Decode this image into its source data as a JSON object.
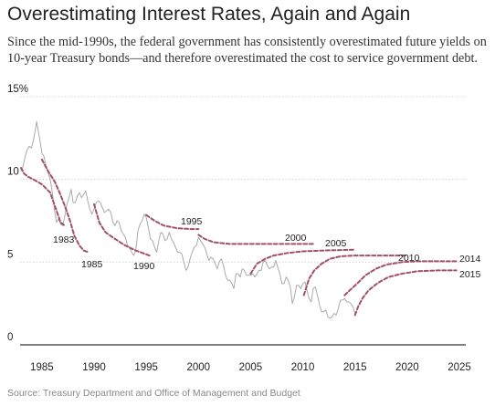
{
  "title": "Overestimating Interest Rates, Again and Again",
  "subtitle": "Since the mid-1990s, the federal government has consistently overestimated future yields on 10-year Treasury bonds—and therefore overestimated the cost to service government debt.",
  "source": "Source: Treasury Department and Office of Management and Budget",
  "chart_data": {
    "type": "line",
    "title": "Overestimating Interest Rates, Again and Again",
    "xlabel": "",
    "ylabel": "",
    "xlim": [
      1983,
      2025
    ],
    "ylim": [
      0,
      15
    ],
    "x_ticks": [
      1985,
      1990,
      1995,
      2000,
      2005,
      2010,
      2015,
      2020,
      2025
    ],
    "x_tick_labels": [
      "1985",
      "1990",
      "1995",
      "2000",
      "2005",
      "2010",
      "2015",
      "2020",
      "2025"
    ],
    "y_ticks": [
      0,
      5,
      10,
      15
    ],
    "y_tick_labels": [
      "0",
      "5",
      "10",
      "15%"
    ],
    "grid": true,
    "actual": {
      "color": "#aaaaaa",
      "points": [
        [
          1983.0,
          10.5
        ],
        [
          1983.2,
          10.8
        ],
        [
          1983.4,
          11.4
        ],
        [
          1983.6,
          11.8
        ],
        [
          1983.8,
          12.0
        ],
        [
          1984.0,
          11.9
        ],
        [
          1984.2,
          12.4
        ],
        [
          1984.4,
          13.1
        ],
        [
          1984.5,
          13.5
        ],
        [
          1984.6,
          13.1
        ],
        [
          1984.8,
          12.4
        ],
        [
          1985.0,
          11.6
        ],
        [
          1985.2,
          11.4
        ],
        [
          1985.4,
          10.8
        ],
        [
          1985.6,
          10.4
        ],
        [
          1985.8,
          10.0
        ],
        [
          1986.0,
          9.2
        ],
        [
          1986.2,
          8.2
        ],
        [
          1986.4,
          7.4
        ],
        [
          1986.6,
          7.6
        ],
        [
          1986.8,
          7.3
        ],
        [
          1987.0,
          7.2
        ],
        [
          1987.2,
          7.8
        ],
        [
          1987.4,
          8.5
        ],
        [
          1987.6,
          8.9
        ],
        [
          1987.8,
          9.4
        ],
        [
          1988.0,
          8.6
        ],
        [
          1988.2,
          8.6
        ],
        [
          1988.4,
          9.0
        ],
        [
          1988.6,
          9.2
        ],
        [
          1988.8,
          8.9
        ],
        [
          1989.0,
          9.1
        ],
        [
          1989.2,
          9.3
        ],
        [
          1989.4,
          8.7
        ],
        [
          1989.6,
          8.2
        ],
        [
          1989.8,
          7.9
        ],
        [
          1990.0,
          8.2
        ],
        [
          1990.2,
          8.6
        ],
        [
          1990.4,
          8.7
        ],
        [
          1990.6,
          8.6
        ],
        [
          1990.8,
          8.3
        ],
        [
          1991.0,
          8.0
        ],
        [
          1991.2,
          8.1
        ],
        [
          1991.4,
          8.2
        ],
        [
          1991.6,
          8.0
        ],
        [
          1991.8,
          7.4
        ],
        [
          1992.0,
          7.2
        ],
        [
          1992.2,
          7.5
        ],
        [
          1992.4,
          7.4
        ],
        [
          1992.6,
          6.9
        ],
        [
          1992.8,
          6.7
        ],
        [
          1993.0,
          6.5
        ],
        [
          1993.2,
          6.0
        ],
        [
          1993.4,
          5.9
        ],
        [
          1993.6,
          5.6
        ],
        [
          1993.8,
          5.4
        ],
        [
          1994.0,
          5.7
        ],
        [
          1994.2,
          6.9
        ],
        [
          1994.4,
          7.3
        ],
        [
          1994.6,
          7.5
        ],
        [
          1994.8,
          7.9
        ],
        [
          1995.0,
          7.7
        ],
        [
          1995.2,
          7.1
        ],
        [
          1995.4,
          6.4
        ],
        [
          1995.6,
          6.3
        ],
        [
          1995.8,
          5.9
        ],
        [
          1996.0,
          5.6
        ],
        [
          1996.2,
          6.3
        ],
        [
          1996.4,
          6.8
        ],
        [
          1996.6,
          6.7
        ],
        [
          1996.8,
          6.3
        ],
        [
          1997.0,
          6.4
        ],
        [
          1997.2,
          6.8
        ],
        [
          1997.4,
          6.4
        ],
        [
          1997.6,
          6.2
        ],
        [
          1997.8,
          5.9
        ],
        [
          1998.0,
          5.6
        ],
        [
          1998.2,
          5.6
        ],
        [
          1998.4,
          5.5
        ],
        [
          1998.6,
          5.0
        ],
        [
          1998.8,
          4.5
        ],
        [
          1999.0,
          4.7
        ],
        [
          1999.2,
          5.2
        ],
        [
          1999.4,
          5.6
        ],
        [
          1999.6,
          5.9
        ],
        [
          1999.8,
          6.0
        ],
        [
          2000.0,
          6.5
        ],
        [
          2000.2,
          6.3
        ],
        [
          2000.4,
          6.1
        ],
        [
          2000.6,
          5.9
        ],
        [
          2000.8,
          5.5
        ],
        [
          2001.0,
          5.1
        ],
        [
          2001.2,
          5.3
        ],
        [
          2001.4,
          5.2
        ],
        [
          2001.6,
          4.9
        ],
        [
          2001.8,
          4.6
        ],
        [
          2002.0,
          5.0
        ],
        [
          2002.2,
          5.2
        ],
        [
          2002.4,
          4.8
        ],
        [
          2002.6,
          4.2
        ],
        [
          2002.8,
          3.9
        ],
        [
          2003.0,
          3.9
        ],
        [
          2003.2,
          3.7
        ],
        [
          2003.4,
          3.4
        ],
        [
          2003.6,
          4.3
        ],
        [
          2003.8,
          4.3
        ],
        [
          2004.0,
          4.1
        ],
        [
          2004.2,
          4.6
        ],
        [
          2004.4,
          4.5
        ],
        [
          2004.6,
          4.2
        ],
        [
          2004.8,
          4.2
        ],
        [
          2005.0,
          4.2
        ],
        [
          2005.2,
          4.3
        ],
        [
          2005.4,
          4.1
        ],
        [
          2005.6,
          4.3
        ],
        [
          2005.8,
          4.5
        ],
        [
          2006.0,
          4.5
        ],
        [
          2006.2,
          5.0
        ],
        [
          2006.4,
          5.1
        ],
        [
          2006.6,
          4.8
        ],
        [
          2006.8,
          4.6
        ],
        [
          2007.0,
          4.7
        ],
        [
          2007.2,
          4.7
        ],
        [
          2007.4,
          5.1
        ],
        [
          2007.6,
          4.7
        ],
        [
          2007.8,
          4.3
        ],
        [
          2008.0,
          3.7
        ],
        [
          2008.2,
          3.7
        ],
        [
          2008.4,
          4.1
        ],
        [
          2008.6,
          3.9
        ],
        [
          2008.8,
          3.5
        ],
        [
          2009.0,
          2.5
        ],
        [
          2009.2,
          2.9
        ],
        [
          2009.4,
          3.6
        ],
        [
          2009.6,
          3.6
        ],
        [
          2009.8,
          3.4
        ],
        [
          2010.0,
          3.7
        ],
        [
          2010.2,
          3.8
        ],
        [
          2010.4,
          3.3
        ],
        [
          2010.6,
          2.8
        ],
        [
          2010.8,
          2.6
        ],
        [
          2011.0,
          3.4
        ],
        [
          2011.2,
          3.5
        ],
        [
          2011.4,
          3.0
        ],
        [
          2011.6,
          2.4
        ],
        [
          2011.8,
          2.0
        ],
        [
          2012.0,
          2.0
        ],
        [
          2012.2,
          2.1
        ],
        [
          2012.4,
          1.7
        ],
        [
          2012.6,
          1.6
        ],
        [
          2012.8,
          1.7
        ],
        [
          2013.0,
          1.9
        ],
        [
          2013.2,
          1.8
        ],
        [
          2013.4,
          2.2
        ],
        [
          2013.6,
          2.7
        ],
        [
          2013.8,
          2.7
        ],
        [
          2014.0,
          2.8
        ],
        [
          2014.2,
          2.6
        ],
        [
          2014.4,
          2.6
        ],
        [
          2014.6,
          2.5
        ],
        [
          2014.8,
          2.3
        ],
        [
          2015.0,
          1.9
        ],
        [
          2015.2,
          2.0
        ]
      ]
    },
    "series": [
      {
        "name": "1983",
        "color": "#a0506a",
        "points": [
          [
            1983.0,
            10.7
          ],
          [
            1983.3,
            10.35
          ],
          [
            1983.7,
            10.15
          ],
          [
            1984.2,
            10.0
          ],
          [
            1985.0,
            9.7
          ],
          [
            1985.8,
            9.2
          ],
          [
            1986.4,
            8.1
          ],
          [
            1986.8,
            7.4
          ],
          [
            1987.2,
            7.2
          ]
        ]
      },
      {
        "name": "1985",
        "color": "#a0506a",
        "points": [
          [
            1985.0,
            11.2
          ],
          [
            1985.6,
            10.5
          ],
          [
            1986.2,
            9.9
          ],
          [
            1986.7,
            9.2
          ],
          [
            1987.2,
            8.4
          ],
          [
            1987.7,
            7.5
          ],
          [
            1988.1,
            6.6
          ],
          [
            1988.6,
            6.0
          ],
          [
            1989.0,
            5.7
          ],
          [
            1989.5,
            5.6
          ]
        ]
      },
      {
        "name": "1990",
        "color": "#a0506a",
        "points": [
          [
            1990.0,
            8.5
          ],
          [
            1990.5,
            7.4
          ],
          [
            1991.1,
            6.8
          ],
          [
            1992.0,
            6.4
          ],
          [
            1993.0,
            6.0
          ],
          [
            1994.0,
            5.7
          ],
          [
            1995.3,
            5.4
          ]
        ]
      },
      {
        "name": "1995",
        "color": "#a0506a",
        "points": [
          [
            1995.0,
            7.85
          ],
          [
            1995.8,
            7.5
          ],
          [
            1996.7,
            7.2
          ],
          [
            1998.0,
            7.05
          ],
          [
            1999.3,
            7.0
          ],
          [
            2000.0,
            7.0
          ]
        ]
      },
      {
        "name": "2000",
        "color": "#a0506a",
        "points": [
          [
            2000.0,
            6.65
          ],
          [
            2000.6,
            6.4
          ],
          [
            2001.5,
            6.2
          ],
          [
            2003.0,
            6.1
          ],
          [
            2005.0,
            6.1
          ],
          [
            2007.0,
            6.1
          ],
          [
            2009.0,
            6.1
          ],
          [
            2011.0,
            6.1
          ]
        ]
      },
      {
        "name": "2005",
        "color": "#a0506a",
        "points": [
          [
            2005.0,
            4.3
          ],
          [
            2005.6,
            4.9
          ],
          [
            2006.4,
            5.2
          ],
          [
            2007.2,
            5.4
          ],
          [
            2008.5,
            5.55
          ],
          [
            2010.0,
            5.65
          ],
          [
            2012.0,
            5.7
          ],
          [
            2015.0,
            5.75
          ]
        ]
      },
      {
        "name": "2010",
        "color": "#a0506a",
        "points": [
          [
            2010.1,
            3.0
          ],
          [
            2010.6,
            4.0
          ],
          [
            2011.1,
            4.5
          ],
          [
            2011.8,
            4.9
          ],
          [
            2012.6,
            5.2
          ],
          [
            2013.6,
            5.35
          ],
          [
            2015.0,
            5.4
          ],
          [
            2017.5,
            5.4
          ],
          [
            2020.0,
            5.4
          ]
        ]
      },
      {
        "name": "2014",
        "color": "#a0506a",
        "points": [
          [
            2014.0,
            3.0
          ],
          [
            2014.5,
            3.3
          ],
          [
            2015.2,
            3.7
          ],
          [
            2016.0,
            4.2
          ],
          [
            2017.0,
            4.6
          ],
          [
            2018.0,
            4.85
          ],
          [
            2019.5,
            5.0
          ],
          [
            2021.0,
            5.05
          ],
          [
            2023.0,
            5.05
          ],
          [
            2024.7,
            5.05
          ]
        ]
      },
      {
        "name": "2015",
        "color": "#a0506a",
        "points": [
          [
            2015.0,
            1.8
          ],
          [
            2015.3,
            2.3
          ],
          [
            2015.7,
            2.8
          ],
          [
            2016.3,
            3.3
          ],
          [
            2017.2,
            3.75
          ],
          [
            2018.2,
            4.1
          ],
          [
            2019.5,
            4.3
          ],
          [
            2021.0,
            4.45
          ],
          [
            2023.0,
            4.5
          ],
          [
            2024.7,
            4.5
          ]
        ]
      }
    ]
  }
}
